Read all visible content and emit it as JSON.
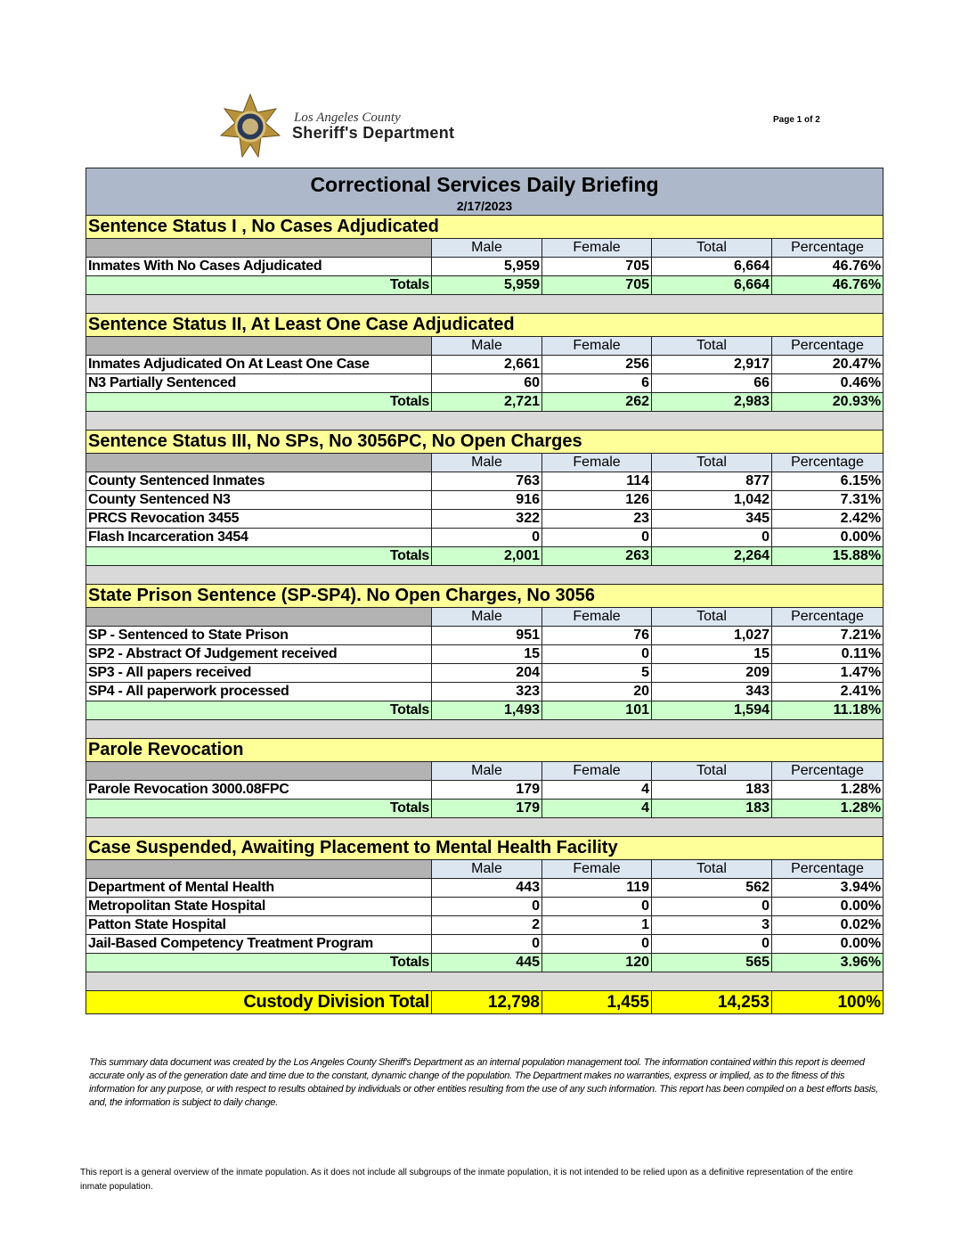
{
  "header": {
    "agency_line1": "Los Angeles County",
    "agency_line2": "Sheriff's Department",
    "page": "Page 1 of 2"
  },
  "report": {
    "title": "Correctional Services Daily Briefing",
    "date": "2/17/2023",
    "columns": [
      "Male",
      "Female",
      "Total",
      "Percentage"
    ],
    "sections": [
      {
        "title": "Sentence Status I , No Cases Adjudicated",
        "rows": [
          {
            "label": "Inmates With No Cases Adjudicated",
            "values": [
              "5,959",
              "705",
              "6,664",
              "46.76%"
            ]
          }
        ],
        "totals": {
          "label": "Totals",
          "values": [
            "5,959",
            "705",
            "6,664",
            "46.76%"
          ]
        }
      },
      {
        "title": "Sentence Status II, At Least One Case Adjudicated",
        "rows": [
          {
            "label": "Inmates Adjudicated On At Least One Case",
            "values": [
              "2,661",
              "256",
              "2,917",
              "20.47%"
            ]
          },
          {
            "label": "N3 Partially Sentenced",
            "values": [
              "60",
              "6",
              "66",
              "0.46%"
            ]
          }
        ],
        "totals": {
          "label": "Totals",
          "values": [
            "2,721",
            "262",
            "2,983",
            "20.93%"
          ]
        }
      },
      {
        "title": "Sentence Status III, No SPs, No 3056PC, No Open Charges",
        "rows": [
          {
            "label": "County Sentenced Inmates",
            "values": [
              "763",
              "114",
              "877",
              "6.15%"
            ]
          },
          {
            "label": "County Sentenced N3",
            "values": [
              "916",
              "126",
              "1,042",
              "7.31%"
            ]
          },
          {
            "label": "PRCS Revocation 3455",
            "values": [
              "322",
              "23",
              "345",
              "2.42%"
            ]
          },
          {
            "label": "Flash Incarceration 3454",
            "values": [
              "0",
              "0",
              "0",
              "0.00%"
            ]
          }
        ],
        "totals": {
          "label": "Totals",
          "values": [
            "2,001",
            "263",
            "2,264",
            "15.88%"
          ]
        }
      },
      {
        "title": "State Prison Sentence (SP-SP4). No Open Charges, No 3056",
        "rows": [
          {
            "label": "SP - Sentenced to State Prison",
            "values": [
              "951",
              "76",
              "1,027",
              "7.21%"
            ]
          },
          {
            "label": "SP2 - Abstract Of Judgement received",
            "values": [
              "15",
              "0",
              "15",
              "0.11%"
            ]
          },
          {
            "label": "SP3 - All papers received",
            "values": [
              "204",
              "5",
              "209",
              "1.47%"
            ]
          },
          {
            "label": "SP4 - All paperwork processed",
            "values": [
              "323",
              "20",
              "343",
              "2.41%"
            ]
          }
        ],
        "totals": {
          "label": "Totals",
          "values": [
            "1,493",
            "101",
            "1,594",
            "11.18%"
          ]
        }
      },
      {
        "title": "Parole Revocation",
        "rows": [
          {
            "label": "Parole Revocation 3000.08FPC",
            "values": [
              "179",
              "4",
              "183",
              "1.28%"
            ]
          }
        ],
        "totals": {
          "label": "Totals",
          "values": [
            "179",
            "4",
            "183",
            "1.28%"
          ]
        }
      },
      {
        "title": "Case Suspended, Awaiting Placement to Mental Health Facility",
        "rows": [
          {
            "label": "Department of Mental Health",
            "values": [
              "443",
              "119",
              "562",
              "3.94%"
            ]
          },
          {
            "label": "Metropolitan State Hospital",
            "values": [
              "0",
              "0",
              "0",
              "0.00%"
            ]
          },
          {
            "label": "Patton State Hospital",
            "values": [
              "2",
              "1",
              "3",
              "0.02%"
            ]
          },
          {
            "label": "Jail-Based Competency Treatment Program",
            "values": [
              "0",
              "0",
              "0",
              "0.00%"
            ]
          }
        ],
        "totals": {
          "label": "Totals",
          "values": [
            "445",
            "120",
            "565",
            "3.96%"
          ]
        }
      }
    ],
    "grand_total": {
      "label": "Custody Division Total",
      "values": [
        "12,798",
        "1,455",
        "14,253",
        "100%"
      ]
    }
  },
  "disclaimer": "This summary data document was created by the Los Angeles County Sheriff's Department as an internal population management tool.  The information contained within this report is deemed accurate only as of the generation date and time due to the constant, dynamic change of the population.  The Department makes no warranties, express or implied, as to the fitness of this information for any purpose, or with respect to results obtained by individuals or other entities resulting from the use of any such information.  This report has been compiled on a best efforts basis, and, the information is subject to daily change.",
  "note": "This report is a general overview of the inmate population.  As it does not include all subgroups of the inmate population, it is not intended to be relied upon as a definitive representation of the entire inmate population."
}
